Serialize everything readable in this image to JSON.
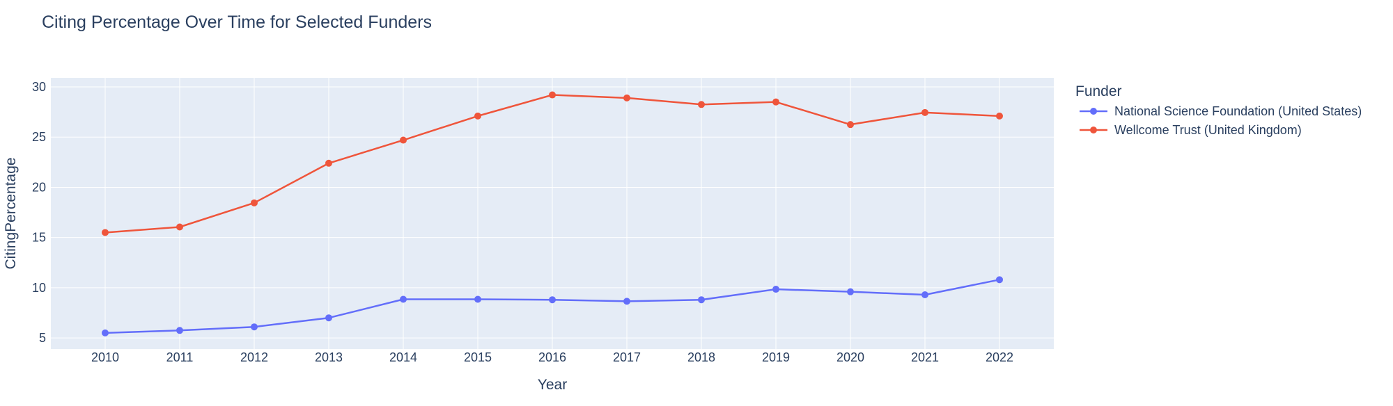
{
  "chart_data": {
    "type": "line",
    "title": "Citing Percentage Over Time for Selected Funders",
    "xlabel": "Year",
    "ylabel": "CitingPercentage",
    "x": [
      2010,
      2011,
      2012,
      2013,
      2014,
      2015,
      2016,
      2017,
      2018,
      2019,
      2020,
      2021,
      2022
    ],
    "ylim": [
      3.9,
      30.9
    ],
    "yticks": [
      5,
      10,
      15,
      20,
      25,
      30
    ],
    "grid": true,
    "legend": {
      "title": "Funder",
      "placement": "right"
    },
    "series": [
      {
        "name": "National Science Foundation (United States)",
        "color": "#636efa",
        "values": [
          5.5,
          5.75,
          6.1,
          7.0,
          8.85,
          8.85,
          8.8,
          8.65,
          8.8,
          9.85,
          9.6,
          9.3,
          10.8
        ]
      },
      {
        "name": "Wellcome Trust (United Kingdom)",
        "color": "#ef553b",
        "values": [
          15.5,
          16.05,
          18.45,
          22.4,
          24.7,
          27.1,
          29.2,
          28.9,
          28.25,
          28.5,
          26.25,
          27.45,
          27.1
        ]
      }
    ]
  }
}
